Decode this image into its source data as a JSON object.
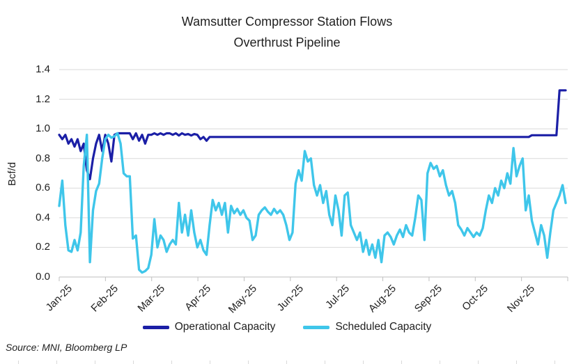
{
  "title": {
    "line1": "Wamsutter Compressor Station Flows",
    "line2": "Overthrust Pipeline"
  },
  "source_note": "Source: MNI, Bloomberg LP",
  "colors": {
    "operational": "#1B1FA6",
    "scheduled": "#3FC6EA",
    "grid": "#D9D9D9",
    "axis": "#BFBFBF",
    "text": "#1F1F1F"
  },
  "chart_data": {
    "type": "line",
    "title": "Wamsutter Compressor Station Flows",
    "subtitle": "Overthrust Pipeline",
    "ylabel": "Bcf/d",
    "ylim": [
      0,
      1.4
    ],
    "ytick_labels": [
      "0.0",
      "0.2",
      "0.4",
      "0.6",
      "0.8",
      "1.0",
      "1.2",
      "1.4"
    ],
    "xtick_labels": [
      "Jan-25",
      "Feb-25",
      "Mar-25",
      "Apr-25",
      "May-25",
      "Jun-25",
      "Jul-25",
      "Aug-25",
      "Sep-25",
      "Oct-25",
      "Nov-25"
    ],
    "grid": true,
    "legend_position": "bottom",
    "sampling": "approx. 2-day intervals, Jan 2025 through late Nov 2025",
    "series": [
      {
        "name": "Operational Capacity",
        "color": "#1B1FA6",
        "values": [
          0.96,
          0.93,
          0.96,
          0.9,
          0.93,
          0.88,
          0.93,
          0.85,
          0.9,
          0.72,
          0.66,
          0.8,
          0.9,
          0.96,
          0.85,
          0.96,
          0.9,
          0.78,
          0.96,
          0.97,
          0.97,
          0.97,
          0.97,
          0.97,
          0.93,
          0.97,
          0.92,
          0.96,
          0.9,
          0.96,
          0.96,
          0.97,
          0.96,
          0.97,
          0.96,
          0.97,
          0.97,
          0.96,
          0.97,
          0.955,
          0.97,
          0.96,
          0.965,
          0.955,
          0.965,
          0.96,
          0.93,
          0.945,
          0.92,
          0.945,
          0.945,
          0.945,
          0.945,
          0.945,
          0.945,
          0.945,
          0.945,
          0.945,
          0.945,
          0.945,
          0.945,
          0.945,
          0.945,
          0.945,
          0.945,
          0.945,
          0.945,
          0.945,
          0.945,
          0.945,
          0.945,
          0.945,
          0.945,
          0.945,
          0.945,
          0.945,
          0.945,
          0.945,
          0.945,
          0.945,
          0.945,
          0.945,
          0.945,
          0.945,
          0.945,
          0.945,
          0.945,
          0.945,
          0.945,
          0.945,
          0.945,
          0.945,
          0.945,
          0.945,
          0.945,
          0.945,
          0.945,
          0.945,
          0.945,
          0.945,
          0.945,
          0.945,
          0.945,
          0.945,
          0.945,
          0.945,
          0.945,
          0.945,
          0.945,
          0.945,
          0.945,
          0.945,
          0.945,
          0.945,
          0.945,
          0.945,
          0.945,
          0.945,
          0.945,
          0.945,
          0.945,
          0.945,
          0.945,
          0.945,
          0.945,
          0.945,
          0.945,
          0.945,
          0.945,
          0.945,
          0.945,
          0.945,
          0.945,
          0.945,
          0.945,
          0.945,
          0.945,
          0.945,
          0.945,
          0.945,
          0.945,
          0.945,
          0.945,
          0.945,
          0.945,
          0.945,
          0.945,
          0.945,
          0.945,
          0.945,
          0.945,
          0.945,
          0.945,
          0.945,
          0.957,
          0.957,
          0.957,
          0.957,
          0.957,
          0.957,
          0.957,
          0.957,
          0.957,
          1.26,
          1.26,
          1.26
        ]
      },
      {
        "name": "Scheduled Capacity",
        "color": "#3FC6EA",
        "values": [
          0.48,
          0.65,
          0.35,
          0.18,
          0.17,
          0.25,
          0.18,
          0.3,
          0.75,
          0.96,
          0.1,
          0.45,
          0.58,
          0.63,
          0.8,
          0.93,
          0.96,
          0.94,
          0.95,
          0.97,
          0.9,
          0.7,
          0.68,
          0.68,
          0.26,
          0.28,
          0.05,
          0.03,
          0.04,
          0.06,
          0.15,
          0.39,
          0.2,
          0.28,
          0.25,
          0.17,
          0.22,
          0.25,
          0.22,
          0.5,
          0.3,
          0.42,
          0.28,
          0.45,
          0.3,
          0.2,
          0.25,
          0.18,
          0.15,
          0.35,
          0.52,
          0.45,
          0.5,
          0.42,
          0.5,
          0.3,
          0.48,
          0.43,
          0.46,
          0.42,
          0.45,
          0.4,
          0.38,
          0.25,
          0.28,
          0.42,
          0.45,
          0.47,
          0.44,
          0.42,
          0.46,
          0.43,
          0.45,
          0.42,
          0.35,
          0.25,
          0.3,
          0.63,
          0.72,
          0.65,
          0.85,
          0.78,
          0.8,
          0.62,
          0.55,
          0.62,
          0.5,
          0.58,
          0.42,
          0.35,
          0.55,
          0.45,
          0.28,
          0.55,
          0.57,
          0.35,
          0.3,
          0.25,
          0.3,
          0.17,
          0.25,
          0.15,
          0.22,
          0.13,
          0.25,
          0.1,
          0.28,
          0.3,
          0.27,
          0.22,
          0.28,
          0.32,
          0.27,
          0.35,
          0.3,
          0.28,
          0.4,
          0.55,
          0.52,
          0.25,
          0.7,
          0.77,
          0.73,
          0.75,
          0.68,
          0.72,
          0.62,
          0.55,
          0.58,
          0.5,
          0.35,
          0.32,
          0.28,
          0.33,
          0.3,
          0.27,
          0.3,
          0.28,
          0.33,
          0.45,
          0.55,
          0.5,
          0.6,
          0.55,
          0.65,
          0.6,
          0.7,
          0.63,
          0.87,
          0.68,
          0.75,
          0.8,
          0.45,
          0.55,
          0.38,
          0.3,
          0.22,
          0.35,
          0.28,
          0.13,
          0.3,
          0.45,
          0.5,
          0.55,
          0.62,
          0.5
        ]
      }
    ]
  }
}
